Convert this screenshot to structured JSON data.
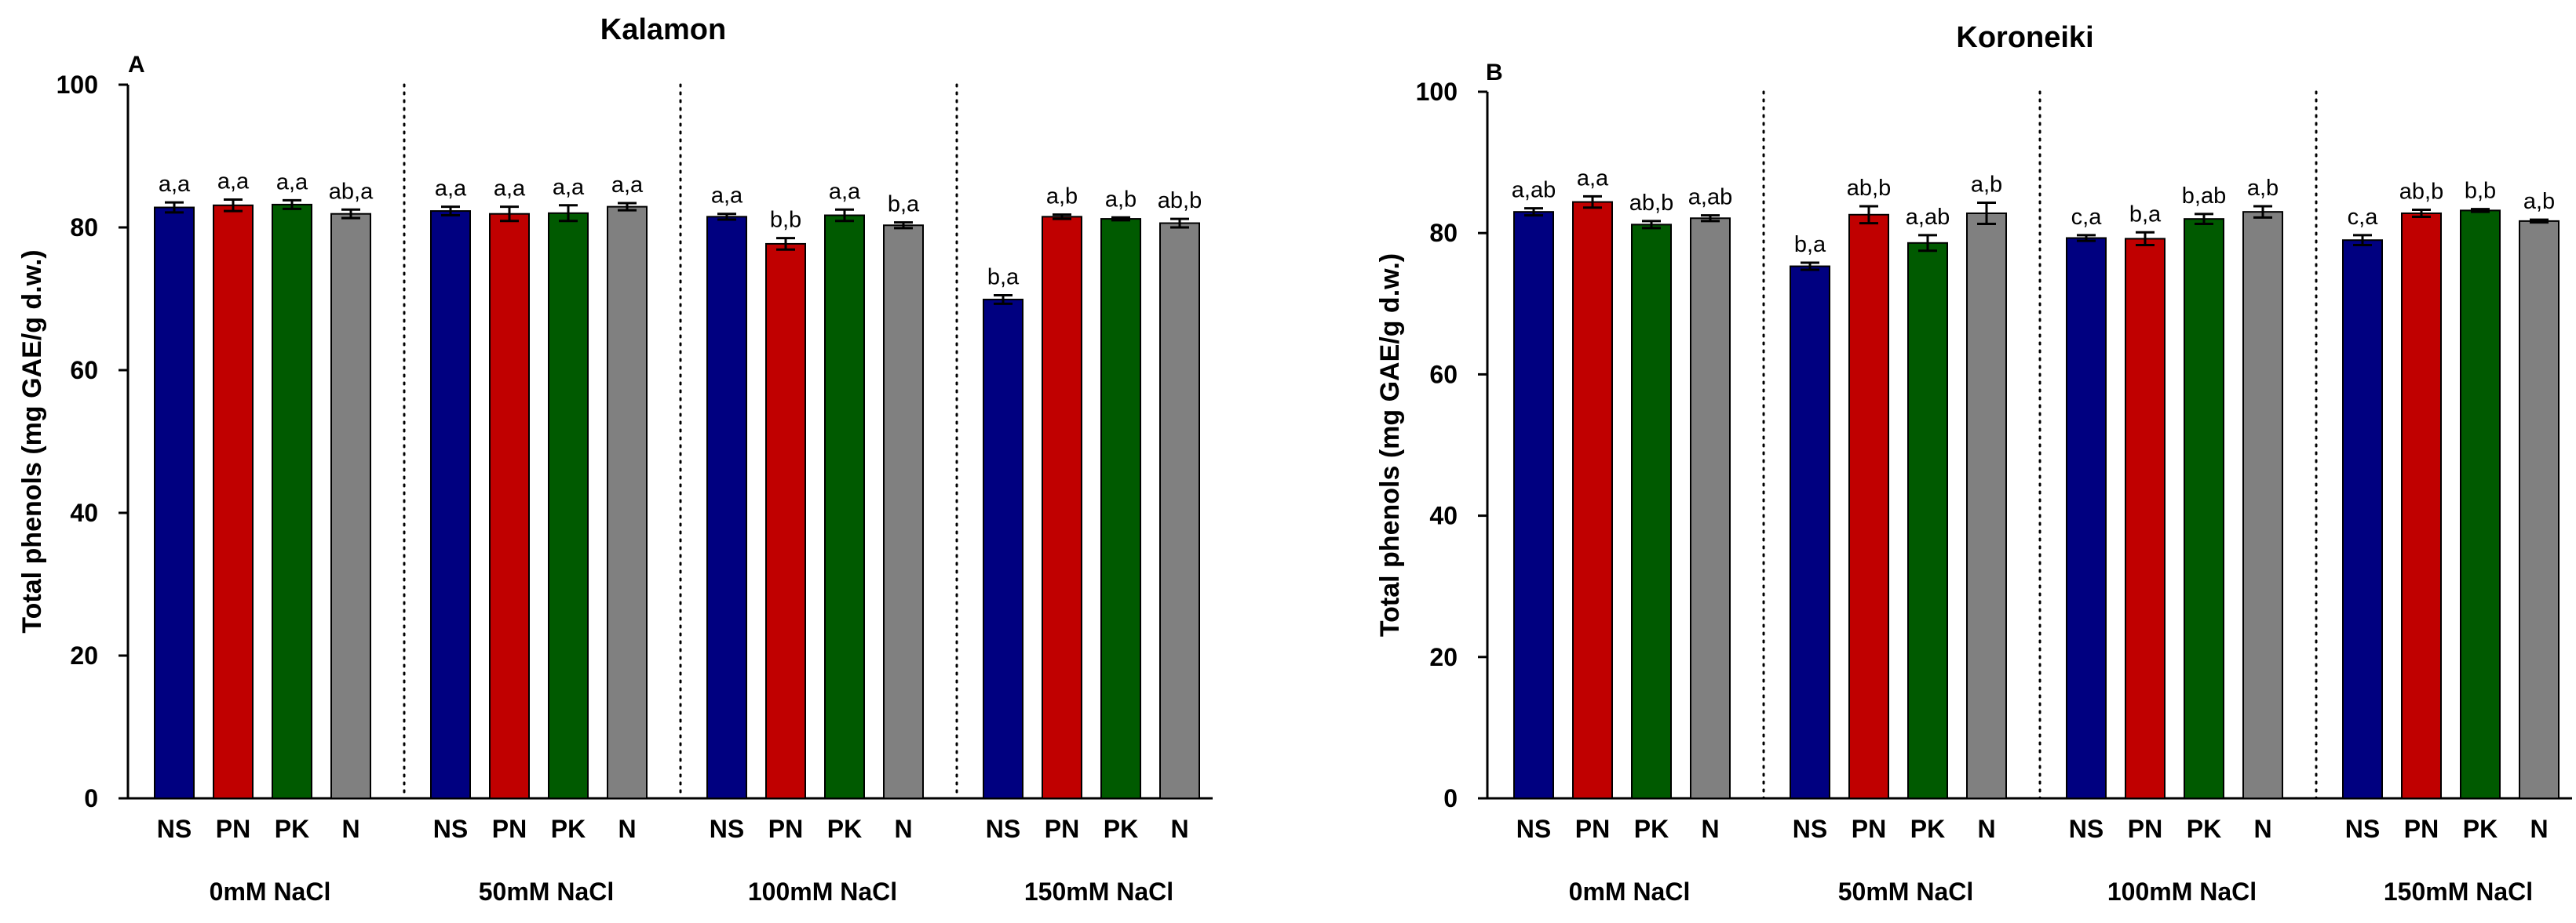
{
  "colors": {
    "NS": "#000080",
    "PN": "#c00000",
    "PK": "#005a00",
    "N": "#808080"
  },
  "chart_data": [
    {
      "type": "bar",
      "panel_label": "A",
      "title": "Kalamon",
      "ylabel": "Total phenols (mg GAE/g d.w.)",
      "ylim": [
        0,
        100
      ],
      "yticks": [
        0,
        20,
        40,
        60,
        80,
        100
      ],
      "bar_labels": [
        "NS",
        "PN",
        "PK",
        "N"
      ],
      "groups": [
        {
          "label": "0mM NaCl",
          "values": [
            82.8,
            83.1,
            83.2,
            81.9
          ],
          "errors": [
            0.7,
            0.8,
            0.6,
            0.6
          ],
          "letters": [
            "a,a",
            "a,a",
            "a,a",
            "ab,a"
          ]
        },
        {
          "label": "50mM NaCl",
          "values": [
            82.3,
            81.9,
            82.0,
            82.9
          ],
          "errors": [
            0.6,
            1.0,
            1.1,
            0.5
          ],
          "letters": [
            "a,a",
            "a,a",
            "a,a",
            "a,a"
          ]
        },
        {
          "label": "100mM NaCl",
          "values": [
            81.5,
            77.7,
            81.7,
            80.3
          ],
          "errors": [
            0.4,
            0.8,
            0.8,
            0.4
          ],
          "letters": [
            "a,a",
            "b,b",
            "a,a",
            "b,a"
          ]
        },
        {
          "label": "150mM NaCl",
          "values": [
            69.9,
            81.5,
            81.2,
            80.6
          ],
          "errors": [
            0.6,
            0.3,
            0.2,
            0.6
          ],
          "letters": [
            "b,a",
            "a,b",
            "a,b",
            "ab,b"
          ]
        }
      ],
      "grid": false
    },
    {
      "type": "bar",
      "panel_label": "B",
      "title": "Koroneiki",
      "ylabel": "Total phenols (mg GAE/g d.w.)",
      "ylim": [
        0,
        100
      ],
      "yticks": [
        0,
        20,
        40,
        60,
        80,
        100
      ],
      "bar_labels": [
        "NS",
        "PN",
        "PK",
        "N"
      ],
      "groups": [
        {
          "label": "0mM NaCl",
          "values": [
            83.0,
            84.4,
            81.2,
            82.1
          ],
          "errors": [
            0.5,
            0.8,
            0.5,
            0.4
          ],
          "letters": [
            "a,ab",
            "a,a",
            "ab,b",
            "a,ab"
          ]
        },
        {
          "label": "50mM NaCl",
          "values": [
            75.3,
            82.6,
            78.6,
            82.8
          ],
          "errors": [
            0.5,
            1.2,
            1.1,
            1.5
          ],
          "letters": [
            "b,a",
            "ab,b",
            "a,ab",
            "a,b"
          ]
        },
        {
          "label": "100mM NaCl",
          "values": [
            79.3,
            79.2,
            82.0,
            83.0
          ],
          "errors": [
            0.4,
            0.9,
            0.7,
            0.8
          ],
          "letters": [
            "c,a",
            "b,a",
            "b,ab",
            "a,b"
          ]
        },
        {
          "label": "150mM NaCl",
          "values": [
            79.0,
            82.8,
            83.2,
            81.7
          ],
          "errors": [
            0.7,
            0.5,
            0.2,
            0.2
          ],
          "letters": [
            "c,a",
            "ab,b",
            "b,b",
            "a,b"
          ]
        }
      ],
      "grid": false
    }
  ]
}
